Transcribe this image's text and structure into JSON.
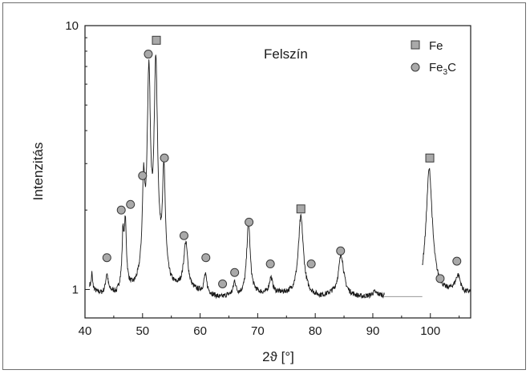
{
  "chart_data": {
    "type": "line",
    "annotation": "Felszín",
    "xlabel": "2ϑ [°]",
    "ylabel": "Intenzitás",
    "xlim": [
      40,
      107
    ],
    "ylim": [
      0.78,
      10
    ],
    "yscale": "log",
    "grid": false,
    "legend_position": "top-right",
    "x_ticks": [
      40,
      50,
      60,
      70,
      80,
      90,
      100
    ],
    "x_tick_labels": [
      "40",
      "50",
      "60",
      "70",
      "80",
      "90",
      "100"
    ],
    "y_ticks": [
      1,
      10
    ],
    "y_tick_labels": [
      "1",
      "10"
    ],
    "legend": [
      {
        "marker": "square",
        "name": "Fe"
      },
      {
        "marker": "circle",
        "name": "Fe",
        "sub": "3",
        "suffix": "C"
      }
    ],
    "baseline": [
      [
        40.8,
        1.03
      ],
      [
        42,
        0.97
      ],
      [
        43,
        0.95
      ],
      [
        44.8,
        0.96
      ],
      [
        45.5,
        0.94
      ],
      [
        46.2,
        1.0
      ],
      [
        48.5,
        0.96
      ],
      [
        49.5,
        0.97
      ],
      [
        54.8,
        0.97
      ],
      [
        56.5,
        0.98
      ],
      [
        59,
        0.97
      ],
      [
        60.2,
        0.96
      ],
      [
        62,
        0.94
      ],
      [
        63.5,
        0.92
      ],
      [
        65,
        0.94
      ],
      [
        67,
        0.94
      ],
      [
        69.5,
        0.96
      ],
      [
        71.5,
        0.95
      ],
      [
        73.5,
        0.96
      ],
      [
        76,
        0.95
      ],
      [
        79,
        0.94
      ],
      [
        81,
        0.93
      ],
      [
        83,
        0.95
      ],
      [
        86,
        0.94
      ],
      [
        88,
        0.93
      ],
      [
        89.5,
        0.94
      ],
      [
        90.3,
        0.97
      ],
      [
        91,
        0.95
      ],
      [
        92,
        0.94
      ],
      [
        98.2,
        0.94
      ],
      [
        99,
        0.98
      ],
      [
        101,
        0.98
      ],
      [
        102.5,
        0.96
      ],
      [
        104,
        0.98
      ],
      [
        105.8,
        0.95
      ],
      [
        107,
        0.97
      ]
    ],
    "peaks": [
      {
        "x": 41.2,
        "h": 1.15,
        "w": 0.1
      },
      {
        "x": 43.8,
        "h": 1.13,
        "w": 0.25
      },
      {
        "x": 46.6,
        "h": 1.6,
        "w": 0.15
      },
      {
        "x": 47.0,
        "h": 1.78,
        "w": 0.2
      },
      {
        "x": 50.2,
        "h": 2.5,
        "w": 0.22
      },
      {
        "x": 51.1,
        "h": 7.0,
        "w": 0.24
      },
      {
        "x": 52.3,
        "h": 7.6,
        "w": 0.24
      },
      {
        "x": 53.7,
        "h": 2.8,
        "w": 0.25
      },
      {
        "x": 57.5,
        "h": 1.48,
        "w": 0.4
      },
      {
        "x": 60.9,
        "h": 1.12,
        "w": 0.3
      },
      {
        "x": 66.0,
        "h": 1.06,
        "w": 0.25
      },
      {
        "x": 68.4,
        "h": 1.82,
        "w": 0.3
      },
      {
        "x": 72.3,
        "h": 1.1,
        "w": 0.35
      },
      {
        "x": 77.5,
        "h": 1.88,
        "w": 0.45
      },
      {
        "x": 84.5,
        "h": 1.35,
        "w": 0.5
      },
      {
        "x": 99.8,
        "h": 2.85,
        "w": 0.5
      },
      {
        "x": 104.8,
        "h": 1.12,
        "w": 0.5
      }
    ],
    "gap": {
      "from": 92,
      "to": 98.6,
      "y": 0.94
    },
    "series": [
      {
        "marker": "square",
        "label": "Fe",
        "x": [
          52.4,
          77.5,
          99.9
        ],
        "y": [
          8.8,
          2.02,
          3.15
        ]
      },
      {
        "marker": "circle",
        "label": "Fe3C",
        "x": [
          43.8,
          46.3,
          47.9,
          50.0,
          51.0,
          53.8,
          57.2,
          61.0,
          63.9,
          66.0,
          68.5,
          72.2,
          79.3,
          84.4,
          101.7,
          104.6
        ],
        "y": [
          1.32,
          2.0,
          2.1,
          2.7,
          7.8,
          3.15,
          1.6,
          1.32,
          1.05,
          1.16,
          1.8,
          1.25,
          1.25,
          1.4,
          1.1,
          1.28
        ]
      }
    ]
  }
}
